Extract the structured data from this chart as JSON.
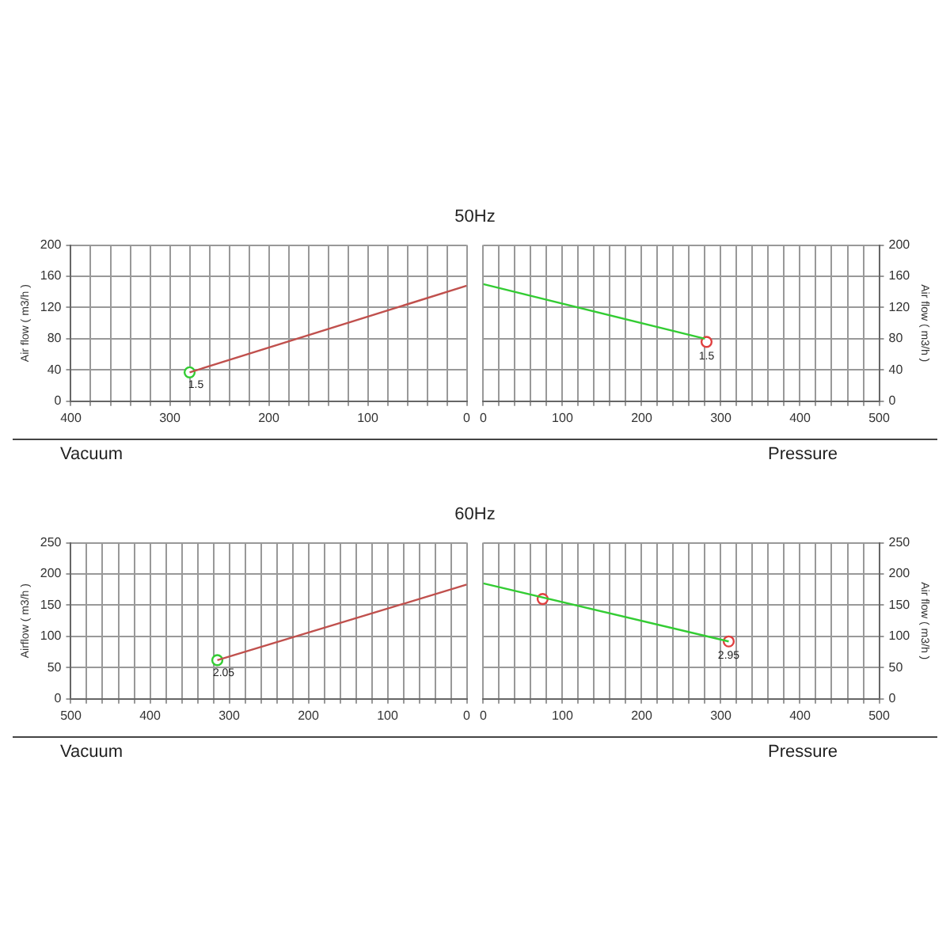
{
  "chart_data": [
    {
      "type": "line",
      "title": "50Hz",
      "xlabel": "Vacuum",
      "ylabel": "Air flow ( m3/h )",
      "xlim": [
        400,
        0
      ],
      "xticks": [
        400,
        {
          "value": 380,
          "label": null
        },
        {
          "value": 360,
          "label": null
        },
        {
          "value": 340,
          "label": null
        },
        {
          "value": 320,
          "label": null
        },
        300,
        {
          "value": 280,
          "label": null
        },
        {
          "value": 260,
          "label": null
        },
        {
          "value": 240,
          "label": null
        },
        {
          "value": 220,
          "label": null
        },
        200,
        {
          "value": 180,
          "label": null
        },
        {
          "value": 160,
          "label": null
        },
        {
          "value": 140,
          "label": null
        },
        {
          "value": 120,
          "label": null
        },
        100,
        {
          "value": 80,
          "label": null
        },
        {
          "value": 60,
          "label": null
        },
        {
          "value": 40,
          "label": null
        },
        {
          "value": 20,
          "label": null
        },
        0
      ],
      "ylim": [
        0,
        200
      ],
      "yticks": [
        0,
        40,
        80,
        120,
        160,
        200
      ],
      "grid": true,
      "legend": false,
      "marker": "none",
      "series": [
        {
          "color": "#c0504d",
          "x": [
            0,
            280
          ],
          "values": [
            148,
            37
          ]
        },
        {
          "type": "scatter",
          "marker": "circle",
          "color": "#33cc33",
          "x": [
            280
          ],
          "values": [
            37
          ]
        }
      ],
      "annotations": [
        {
          "text": "1.5",
          "x": 280,
          "y": 37
        }
      ]
    },
    {
      "type": "line",
      "xlabel": "Pressure",
      "y2label": "Air flow ( m3/h )",
      "xlim": [
        0,
        500
      ],
      "xticks": [
        0,
        {
          "value": 20,
          "label": null
        },
        {
          "value": 40,
          "label": null
        },
        {
          "value": 60,
          "label": null
        },
        {
          "value": 80,
          "label": null
        },
        100,
        {
          "value": 120,
          "label": null
        },
        {
          "value": 140,
          "label": null
        },
        {
          "value": 160,
          "label": null
        },
        {
          "value": 180,
          "label": null
        },
        200,
        {
          "value": 220,
          "label": null
        },
        {
          "value": 240,
          "label": null
        },
        {
          "value": 260,
          "label": null
        },
        {
          "value": 280,
          "label": null
        },
        300,
        {
          "value": 320,
          "label": null
        },
        {
          "value": 340,
          "label": null
        },
        {
          "value": 360,
          "label": null
        },
        {
          "value": 380,
          "label": null
        },
        400,
        {
          "value": 420,
          "label": null
        },
        {
          "value": 440,
          "label": null
        },
        {
          "value": 460,
          "label": null
        },
        {
          "value": 480,
          "label": null
        },
        500
      ],
      "y2lim": [
        0,
        200
      ],
      "y2ticks": [
        0,
        40,
        80,
        120,
        160,
        200
      ],
      "grid": true,
      "legend": false,
      "marker": "none",
      "series": [
        {
          "axis": "y2",
          "color": "#33cc33",
          "x": [
            0,
            280
          ],
          "values": [
            150,
            80
          ]
        },
        {
          "type": "scatter",
          "axis": "y2",
          "marker": "circle",
          "color": "#e04040",
          "x": [
            282
          ],
          "values": [
            76
          ]
        }
      ],
      "annotations": [
        "1.5"
      ]
    },
    {
      "type": "line",
      "title": "60Hz",
      "xlabel": "Vacuum",
      "ylabel": "Airflow ( m3/h )",
      "xlim": [
        500,
        0
      ],
      "xticks": [
        500,
        {
          "value": 480,
          "label": null
        },
        {
          "value": 460,
          "label": null
        },
        {
          "value": 440,
          "label": null
        },
        {
          "value": 420,
          "label": null
        },
        400,
        {
          "value": 380,
          "label": null
        },
        {
          "value": 360,
          "label": null
        },
        {
          "value": 340,
          "label": null
        },
        {
          "value": 320,
          "label": null
        },
        300,
        {
          "value": 280,
          "label": null
        },
        {
          "value": 260,
          "label": null
        },
        {
          "value": 240,
          "label": null
        },
        {
          "value": 220,
          "label": null
        },
        200,
        {
          "value": 180,
          "label": null
        },
        {
          "value": 160,
          "label": null
        },
        {
          "value": 140,
          "label": null
        },
        {
          "value": 120,
          "label": null
        },
        100,
        {
          "value": 80,
          "label": null
        },
        {
          "value": 60,
          "label": null
        },
        {
          "value": 40,
          "label": null
        },
        {
          "value": 20,
          "label": null
        },
        0
      ],
      "ylim": [
        0,
        250
      ],
      "yticks": [
        0,
        50,
        100,
        150,
        200,
        250
      ],
      "grid": true,
      "legend": false,
      "marker": "none",
      "series": [
        {
          "color": "#c0504d",
          "x": [
            0,
            315
          ],
          "values": [
            183,
            62
          ]
        },
        {
          "type": "scatter",
          "marker": "circle",
          "color": "#33cc33",
          "x": [
            315
          ],
          "values": [
            62
          ]
        }
      ],
      "annotations": [
        {
          "text": "2.05",
          "x": 315,
          "y": 62
        }
      ]
    },
    {
      "type": "line",
      "xlabel": "Pressure",
      "y2label": "Air flow ( m3/h )",
      "xlim": [
        0,
        500
      ],
      "xticks": [
        0,
        {
          "value": 20,
          "label": null
        },
        {
          "value": 40,
          "label": null
        },
        {
          "value": 60,
          "label": null
        },
        {
          "value": 80,
          "label": null
        },
        100,
        {
          "value": 120,
          "label": null
        },
        {
          "value": 140,
          "label": null
        },
        {
          "value": 160,
          "label": null
        },
        {
          "value": 180,
          "label": null
        },
        200,
        {
          "value": 220,
          "label": null
        },
        {
          "value": 240,
          "label": null
        },
        {
          "value": 260,
          "label": null
        },
        {
          "value": 280,
          "label": null
        },
        300,
        {
          "value": 320,
          "label": null
        },
        {
          "value": 340,
          "label": null
        },
        {
          "value": 360,
          "label": null
        },
        {
          "value": 380,
          "label": null
        },
        400,
        {
          "value": 420,
          "label": null
        },
        {
          "value": 440,
          "label": null
        },
        {
          "value": 460,
          "label": null
        },
        {
          "value": 480,
          "label": null
        },
        500
      ],
      "y2lim": [
        0,
        250
      ],
      "y2ticks": [
        0,
        50,
        100,
        150,
        200,
        250
      ],
      "grid": true,
      "legend": false,
      "marker": "none",
      "series": [
        {
          "axis": "y2",
          "color": "#33cc33",
          "x": [
            0,
            310
          ],
          "values": [
            185,
            92
          ]
        },
        {
          "type": "scatter",
          "axis": "y2",
          "marker": "circle",
          "color": "#e04040",
          "x": [
            75,
            310
          ],
          "values": [
            160,
            92
          ]
        }
      ],
      "annotations": [
        "2.95"
      ]
    }
  ]
}
